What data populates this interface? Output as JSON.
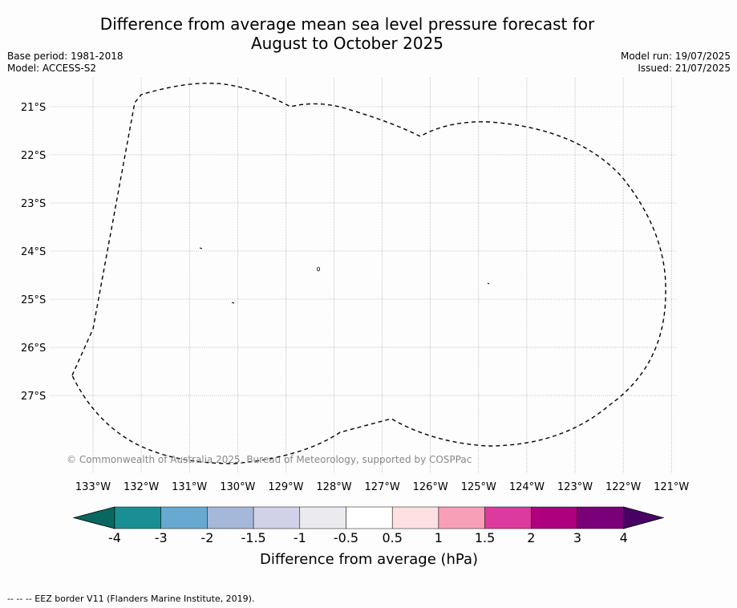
{
  "title_line1": "Difference from average mean sea level pressure forecast for",
  "title_line2": "August to October 2025",
  "base_period": "Base period: 1981-2018",
  "model": "Model: ACCESS-S2",
  "model_run": "Model run: 19/07/2025",
  "issued": "Issued: 21/07/2025",
  "map": {
    "lon_labels": [
      "133°W",
      "132°W",
      "131°W",
      "130°W",
      "129°W",
      "128°W",
      "127°W",
      "126°W",
      "125°W",
      "124°W",
      "123°W",
      "122°W",
      "121°W"
    ],
    "lat_labels": [
      "21°S",
      "22°S",
      "23°S",
      "24°S",
      "25°S",
      "26°S",
      "27°S"
    ],
    "copyright": "© Commonwealth of Australia 2025, Bureau of Meteorology, supported by COSPPac"
  },
  "colorbar": {
    "ticks": [
      "-4",
      "-3",
      "-2",
      "-1.5",
      "-1",
      "-0.5",
      "0.5",
      "1",
      "1.5",
      "2",
      "3",
      "4"
    ],
    "colors": [
      "#1a8f93",
      "#68a9d2",
      "#a5b8da",
      "#d1d1e8",
      "#ebebef",
      "#ffffff",
      "#fde0e1",
      "#f89fb8",
      "#dd3a9e",
      "#ae007e",
      "#7a0079"
    ],
    "under_color": "#08685f",
    "over_color": "#490064",
    "label": "Difference from average (hPa)"
  },
  "footer": "--  --  -- EEZ border V11 (Flanders Marine Institute, 2019)."
}
